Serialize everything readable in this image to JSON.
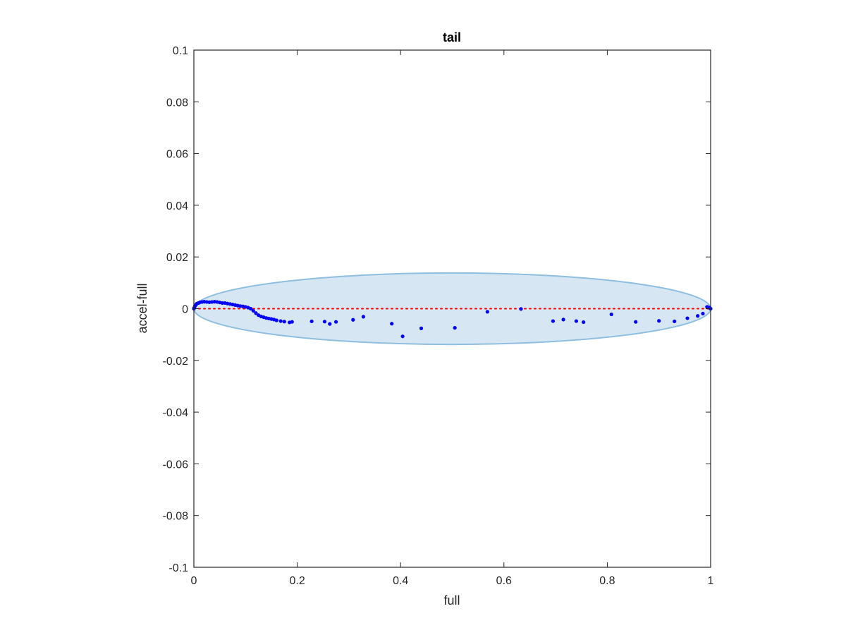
{
  "chart_data": {
    "type": "scatter",
    "title": "tail",
    "xlabel": "full",
    "ylabel": "accel-full",
    "xlim": [
      0,
      1
    ],
    "ylim": [
      -0.1,
      0.1
    ],
    "xticks": [
      0,
      0.2,
      0.4,
      0.6,
      0.8,
      1
    ],
    "xtick_labels": [
      "0",
      "0.2",
      "0.4",
      "0.6",
      "0.8",
      "1"
    ],
    "yticks": [
      0.1,
      0.08,
      0.06,
      0.04,
      0.02,
      0,
      -0.02,
      -0.04,
      -0.06,
      -0.08,
      -0.1
    ],
    "ytick_labels": [
      "0.1",
      "0.08",
      "0.06",
      "0.04",
      "0.02",
      "0",
      "-0.02",
      "-0.04",
      "-0.06",
      "-0.08",
      "-0.1"
    ],
    "grid": false,
    "colors": {
      "points": "#0000ff",
      "reference_line": "#ff0000",
      "ellipse_fill": "#d6e6f2",
      "ellipse_edge": "#8ebfe0",
      "axes": "#262626"
    },
    "ellipse": {
      "center": [
        0.5,
        0
      ],
      "x_radius": 0.5,
      "y_radius": 0.0138
    },
    "reference_line": {
      "y": 0,
      "x": [
        0,
        1
      ],
      "style": "dotted"
    },
    "series": [
      {
        "points": [
          [
            0.0,
            0.0
          ],
          [
            0.001,
            0.0005
          ],
          [
            0.002,
            0.001
          ],
          [
            0.004,
            0.0015
          ],
          [
            0.006,
            0.002
          ],
          [
            0.009,
            0.0022
          ],
          [
            0.012,
            0.0025
          ],
          [
            0.016,
            0.0026
          ],
          [
            0.02,
            0.0027
          ],
          [
            0.025,
            0.0026
          ],
          [
            0.03,
            0.0025
          ],
          [
            0.035,
            0.0026
          ],
          [
            0.04,
            0.0027
          ],
          [
            0.045,
            0.0026
          ],
          [
            0.05,
            0.0024
          ],
          [
            0.055,
            0.0022
          ],
          [
            0.06,
            0.0022
          ],
          [
            0.065,
            0.002
          ],
          [
            0.07,
            0.0018
          ],
          [
            0.075,
            0.0016
          ],
          [
            0.08,
            0.0014
          ],
          [
            0.085,
            0.0012
          ],
          [
            0.09,
            0.001
          ],
          [
            0.095,
            0.0009
          ],
          [
            0.1,
            0.0007
          ],
          [
            0.105,
            0.0004
          ],
          [
            0.11,
            0.0
          ],
          [
            0.115,
            -0.0008
          ],
          [
            0.12,
            -0.0017
          ],
          [
            0.125,
            -0.0025
          ],
          [
            0.13,
            -0.003
          ],
          [
            0.135,
            -0.0033
          ],
          [
            0.14,
            -0.0036
          ],
          [
            0.145,
            -0.0038
          ],
          [
            0.15,
            -0.004
          ],
          [
            0.155,
            -0.0042
          ],
          [
            0.16,
            -0.0045
          ],
          [
            0.168,
            -0.0048
          ],
          [
            0.175,
            -0.005
          ],
          [
            0.185,
            -0.0053
          ],
          [
            0.19,
            -0.0051
          ],
          [
            0.228,
            -0.0049
          ],
          [
            0.253,
            -0.005
          ],
          [
            0.263,
            -0.0059
          ],
          [
            0.275,
            -0.0051
          ],
          [
            0.308,
            -0.0043
          ],
          [
            0.328,
            -0.0031
          ],
          [
            0.383,
            -0.0058
          ],
          [
            0.404,
            -0.0107
          ],
          [
            0.44,
            -0.0076
          ],
          [
            0.505,
            -0.0074
          ],
          [
            0.568,
            -0.0012
          ],
          [
            0.633,
            -0.0001
          ],
          [
            0.695,
            -0.0048
          ],
          [
            0.715,
            -0.0042
          ],
          [
            0.74,
            -0.0048
          ],
          [
            0.754,
            -0.0052
          ],
          [
            0.808,
            -0.0022
          ],
          [
            0.855,
            -0.0051
          ],
          [
            0.9,
            -0.0047
          ],
          [
            0.93,
            -0.0049
          ],
          [
            0.955,
            -0.0037
          ],
          [
            0.975,
            -0.0028
          ],
          [
            0.985,
            -0.0019
          ],
          [
            0.993,
            0.0007
          ],
          [
            0.996,
            0.0005
          ],
          [
            0.998,
            0.0003
          ],
          [
            1.0,
            0.0
          ]
        ]
      }
    ]
  }
}
